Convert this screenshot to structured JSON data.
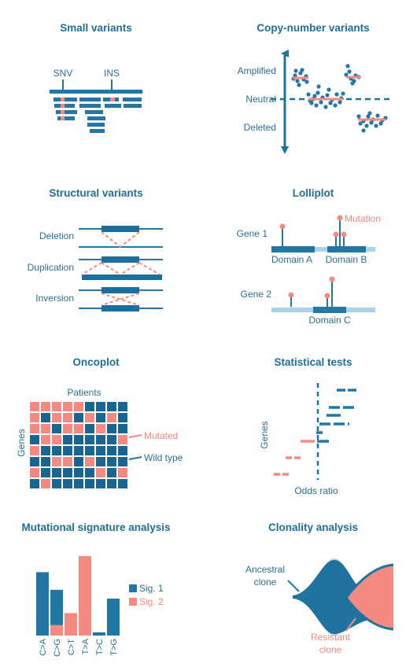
{
  "colors": {
    "blue": "#2377a4",
    "dark_blue": "#1a6690",
    "light_blue": "#a9d3e6",
    "red": "#f58a82",
    "text": "#2a6f93",
    "title": "#1f6f96"
  },
  "panels": {
    "small_variants": {
      "title": "Small variants",
      "labels": {
        "snv": "SNV",
        "ins": "INS"
      }
    },
    "cnv": {
      "title": "Copy-number variants",
      "labels": {
        "amplified": "Amplified",
        "neutral": "Neutral",
        "deleted": "Deleted"
      }
    },
    "structural": {
      "title": "Structural variants",
      "labels": {
        "deletion": "Deletion",
        "duplication": "Duplication",
        "inversion": "Inversion"
      }
    },
    "lolliplot": {
      "title": "Lolliplot",
      "labels": {
        "mutation": "Mutation",
        "gene1": "Gene 1",
        "gene2": "Gene 2",
        "domain_a": "Domain A",
        "domain_b": "Domain B",
        "domain_c": "Domain C"
      }
    },
    "oncoplot": {
      "title": "Oncoplot",
      "labels": {
        "patients": "Patients",
        "genes": "Genes",
        "mutated": "Mutated",
        "wild_type": "Wild type"
      },
      "grid": [
        [
          1,
          1,
          1,
          1,
          1,
          0,
          0,
          0,
          0
        ],
        [
          1,
          0,
          1,
          1,
          0,
          1,
          0,
          1,
          0
        ],
        [
          1,
          1,
          0,
          1,
          1,
          0,
          1,
          0,
          0
        ],
        [
          0,
          1,
          1,
          0,
          0,
          0,
          0,
          0,
          1
        ],
        [
          1,
          0,
          0,
          0,
          0,
          0,
          0,
          0,
          0
        ],
        [
          0,
          0,
          1,
          1,
          0,
          1,
          0,
          0,
          0
        ],
        [
          1,
          0,
          0,
          0,
          0,
          0,
          1,
          0,
          1
        ],
        [
          0,
          1,
          0,
          0,
          0,
          0,
          0,
          0,
          0
        ]
      ]
    },
    "stats": {
      "title": "Statistical tests",
      "labels": {
        "genes": "Genes",
        "odds_ratio": "Odds ratio"
      }
    },
    "signature": {
      "title": "Mutational signature analysis",
      "legend": {
        "sig1": "Sig. 1",
        "sig2": "Sig. 2"
      }
    },
    "clonality": {
      "title": "Clonality analysis",
      "labels": {
        "ancestral_line1": "Ancestral",
        "ancestral_line2": "clone",
        "resistant_line1": "Resistant",
        "resistant_line2": "clone"
      }
    }
  },
  "chart_data": {
    "type": "bar",
    "categories": [
      "C>A",
      "C>G",
      "C>T",
      "T>A",
      "T>C",
      "T>G"
    ],
    "series": [
      {
        "name": "Sig. 1",
        "values": [
          0.79,
          0.44,
          0,
          0,
          0.04,
          0.46
        ]
      },
      {
        "name": "Sig. 2",
        "values": [
          0,
          0.13,
          0.28,
          0.99,
          0,
          0
        ]
      }
    ],
    "title": "Mutational signature analysis",
    "legend": "right"
  }
}
